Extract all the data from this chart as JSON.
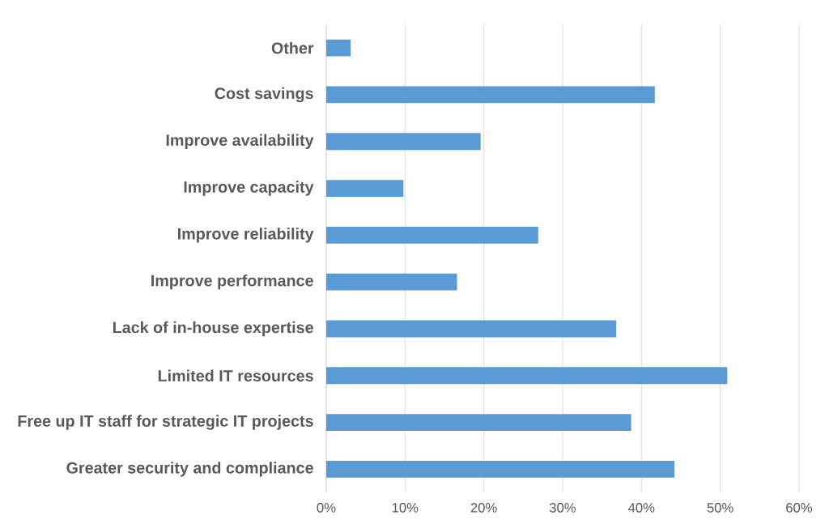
{
  "chart_data": {
    "type": "bar",
    "orientation": "horizontal",
    "categories": [
      "Other",
      "Cost savings",
      "Improve availability",
      "Improve capacity",
      "Improve reliability",
      "Improve performance",
      "Lack of in-house expertise",
      "Limited IT resources",
      "Free up  IT staff for strategic IT projects",
      "Greater security and compliance"
    ],
    "values": [
      3.1,
      41.7,
      19.6,
      9.8,
      26.9,
      16.6,
      36.8,
      50.9,
      38.7,
      44.2
    ],
    "color": "#5b9bd5",
    "xlim": [
      0,
      60
    ],
    "xticks": [
      {
        "value": 0,
        "label": "0%"
      },
      {
        "value": 10,
        "label": "10%"
      },
      {
        "value": 20,
        "label": "20%"
      },
      {
        "value": 30,
        "label": "30%"
      },
      {
        "value": 40,
        "label": "40%"
      },
      {
        "value": 50,
        "label": "50%"
      },
      {
        "value": 60,
        "label": "60%"
      }
    ],
    "grid": "x"
  }
}
